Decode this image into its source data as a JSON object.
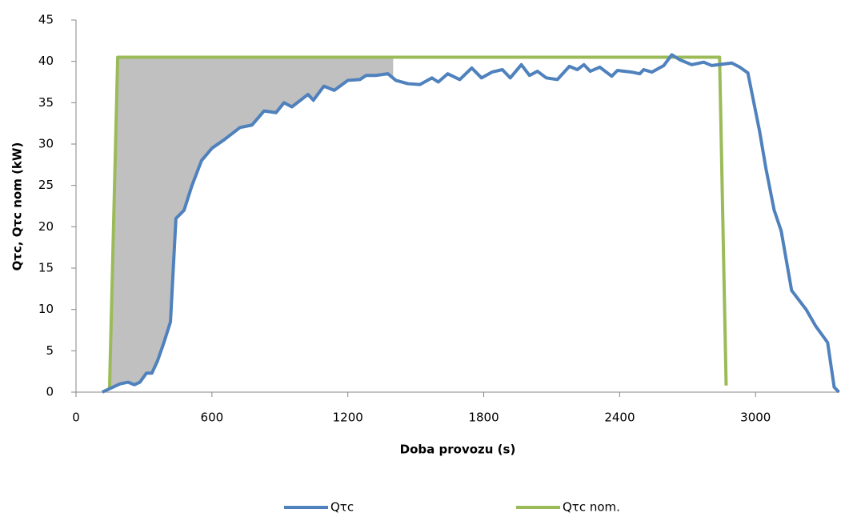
{
  "chart_data": {
    "type": "line",
    "xlabel": "Doba provozu (s)",
    "ylabel": "Qτc, Qτc nom (kW)",
    "xlim": [
      0,
      3370
    ],
    "xticks": [
      0,
      600,
      1200,
      1800,
      2400,
      3000
    ],
    "ylim": [
      0,
      45
    ],
    "yticks": [
      0,
      5,
      10,
      15,
      20,
      25,
      30,
      35,
      40,
      45
    ],
    "grid": false,
    "legend": "bottom",
    "fill_between": {
      "x": [
        150,
        1400
      ],
      "color": "#c0c0c0"
    },
    "series": [
      {
        "name": "Qτc",
        "color": "#4f81bd",
        "x": [
          116,
          194,
          230,
          258,
          282,
          311,
          335,
          360,
          388,
          417,
          441,
          477,
          512,
          554,
          600,
          653,
          724,
          777,
          830,
          883,
          918,
          953,
          1024,
          1048,
          1094,
          1140,
          1200,
          1253,
          1281,
          1324,
          1377,
          1412,
          1465,
          1518,
          1571,
          1599,
          1641,
          1694,
          1747,
          1790,
          1836,
          1882,
          1917,
          1966,
          2002,
          2037,
          2076,
          2125,
          2178,
          2213,
          2242,
          2270,
          2312,
          2365,
          2390,
          2453,
          2489,
          2506,
          2542,
          2595,
          2630,
          2665,
          2718,
          2771,
          2806,
          2895,
          2930,
          2966,
          3018,
          3046,
          3082,
          3113,
          3159,
          3223,
          3265,
          3318,
          3347,
          3368
        ],
        "values": [
          0,
          1,
          1.2,
          0.9,
          1.2,
          2.3,
          2.3,
          3.8,
          6,
          8.5,
          21,
          22,
          25,
          28,
          29.5,
          30.5,
          32,
          32.3,
          34,
          33.8,
          35,
          34.5,
          36,
          35.3,
          37,
          36.5,
          37.7,
          37.8,
          38.3,
          38.3,
          38.5,
          37.7,
          37.3,
          37.2,
          38,
          37.5,
          38.5,
          37.8,
          39.2,
          38,
          38.7,
          39,
          38,
          39.6,
          38.3,
          38.8,
          38,
          37.8,
          39.4,
          39,
          39.6,
          38.8,
          39.3,
          38.2,
          38.9,
          38.7,
          38.5,
          39,
          38.7,
          39.5,
          40.8,
          40.2,
          39.6,
          39.9,
          39.5,
          39.8,
          39.3,
          38.6,
          31.5,
          27,
          22,
          19.5,
          12.3,
          10,
          8,
          6,
          0.6,
          0
        ]
      },
      {
        "name": "Qτc nom.",
        "color": "#9bbb59",
        "x": [
          148,
          184,
          2841,
          2870
        ],
        "values": [
          0.5,
          40.5,
          40.5,
          0.8
        ]
      }
    ]
  }
}
